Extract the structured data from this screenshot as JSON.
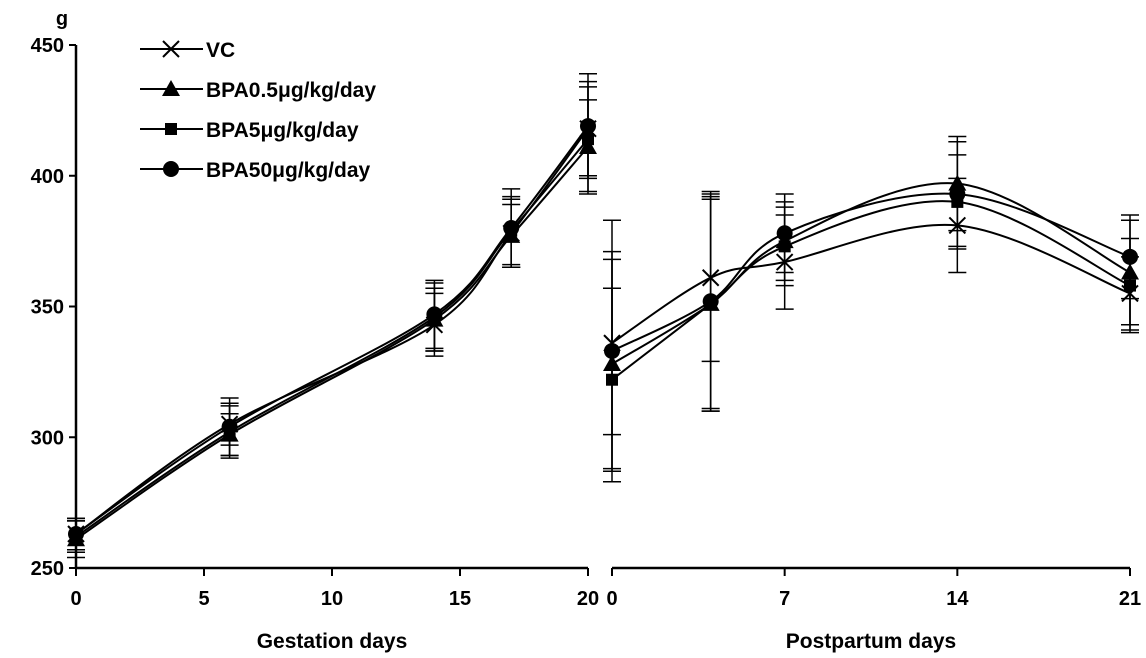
{
  "chart_data": [
    {
      "type": "line",
      "xlabel": "Gestation days",
      "ylabel": "g",
      "xlim": [
        0,
        20
      ],
      "ylim": [
        250,
        450
      ],
      "x_ticks": [
        "0",
        "5",
        "10",
        "15",
        "20"
      ],
      "y_ticks": [
        "250",
        "300",
        "350",
        "400",
        "450"
      ],
      "legend": {
        "placement": "top-left"
      },
      "x": [
        0,
        6,
        14,
        17,
        20
      ],
      "series": [
        {
          "name": "VC",
          "marker": "x",
          "values": [
            263,
            305,
            343,
            378,
            418
          ],
          "errors": [
            6,
            8,
            12,
            13,
            18
          ]
        },
        {
          "name": "BPA0.5μg/kg/day",
          "marker": "triangle",
          "values": [
            261,
            301,
            345,
            377,
            411
          ],
          "errors": [
            7,
            8,
            12,
            12,
            18
          ]
        },
        {
          "name": "BPA5μg/kg/day",
          "marker": "square",
          "values": [
            262,
            302,
            346,
            379,
            414
          ],
          "errors": [
            6,
            10,
            13,
            13,
            20
          ]
        },
        {
          "name": "BPA50μg/kg/day",
          "marker": "circle",
          "values": [
            263,
            304,
            347,
            380,
            419
          ],
          "errors": [
            6,
            11,
            13,
            15,
            20
          ]
        }
      ]
    },
    {
      "type": "line",
      "xlabel": "Postpartum days",
      "ylim": [
        250,
        450
      ],
      "x_ticks": [
        "0",
        "7",
        "14",
        "21"
      ],
      "x_tick_values": [
        0,
        7,
        14,
        21
      ],
      "xlim": [
        0,
        21
      ],
      "x": [
        0,
        4,
        7,
        14,
        21
      ],
      "series": [
        {
          "name": "VC",
          "marker": "x",
          "values": [
            336,
            361,
            367,
            381,
            355
          ],
          "errors": [
            35,
            32,
            18,
            18,
            14
          ]
        },
        {
          "name": "BPA0.5μg/kg/day",
          "marker": "triangle",
          "values": [
            328,
            351,
            375,
            397,
            363
          ],
          "errors": [
            40,
            41,
            15,
            18,
            20
          ]
        },
        {
          "name": "BPA5μg/kg/day",
          "marker": "square",
          "values": [
            322,
            351,
            373,
            390,
            358
          ],
          "errors": [
            35,
            40,
            15,
            18,
            18
          ]
        },
        {
          "name": "BPA50μg/kg/day",
          "marker": "circle",
          "values": [
            333,
            352,
            378,
            393,
            369
          ],
          "errors": [
            50,
            42,
            15,
            20,
            16
          ]
        }
      ]
    }
  ]
}
